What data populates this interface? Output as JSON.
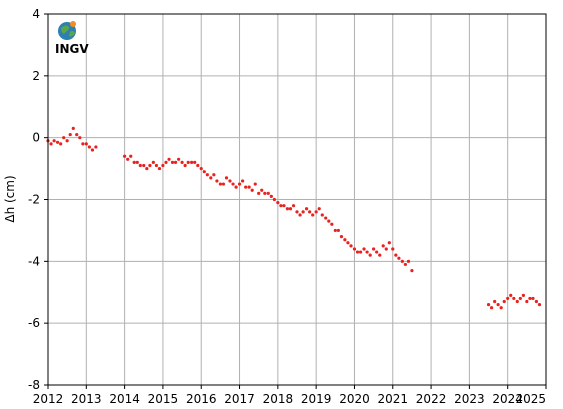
{
  "logo": {
    "text": "INGV"
  },
  "chart_data": {
    "type": "scatter",
    "ylabel": "Δh (cm)",
    "xlabel": "",
    "title": "",
    "xlim": [
      2012,
      2025
    ],
    "ylim": [
      -8,
      4
    ],
    "x_ticks": [
      2012,
      2013,
      2014,
      2015,
      2016,
      2017,
      2018,
      2019,
      2020,
      2021,
      2022,
      2023,
      2024,
      2025
    ],
    "y_ticks": [
      4,
      2,
      0,
      -2,
      -4,
      -6,
      -8
    ],
    "grid": true,
    "marker_color": "#e8231f",
    "series": [
      {
        "x": [
          2012.0,
          2012.08,
          2012.16,
          2012.25,
          2012.33,
          2012.41,
          2012.5,
          2012.58,
          2012.66,
          2012.75,
          2012.83,
          2012.91,
          2013.0,
          2013.08,
          2013.16,
          2013.25,
          2014.0,
          2014.08,
          2014.16,
          2014.25,
          2014.33,
          2014.41,
          2014.5,
          2014.58,
          2014.66,
          2014.75,
          2014.83,
          2014.91,
          2015.0,
          2015.08,
          2015.16,
          2015.25,
          2015.33,
          2015.41,
          2015.5,
          2015.58,
          2015.66,
          2015.75,
          2015.83,
          2015.91,
          2016.0,
          2016.08,
          2016.16,
          2016.25,
          2016.33,
          2016.41,
          2016.5,
          2016.58,
          2016.66,
          2016.75,
          2016.83,
          2016.91,
          2017.0,
          2017.08,
          2017.16,
          2017.25,
          2017.33,
          2017.41,
          2017.5,
          2017.58,
          2017.66,
          2017.75,
          2017.83,
          2017.91,
          2018.0,
          2018.08,
          2018.16,
          2018.25,
          2018.33,
          2018.41,
          2018.5,
          2018.58,
          2018.66,
          2018.75,
          2018.83,
          2018.91,
          2019.0,
          2019.08,
          2019.16,
          2019.25,
          2019.33,
          2019.41,
          2019.5,
          2019.58,
          2019.66,
          2019.75,
          2019.83,
          2019.91,
          2020.0,
          2020.08,
          2020.16,
          2020.25,
          2020.33,
          2020.41,
          2020.5,
          2020.58,
          2020.66,
          2020.75,
          2020.83,
          2020.91,
          2021.0,
          2021.08,
          2021.16,
          2021.25,
          2021.33,
          2021.41,
          2021.5,
          2023.5,
          2023.58,
          2023.66,
          2023.75,
          2023.83,
          2023.91,
          2024.0,
          2024.08,
          2024.16,
          2024.25,
          2024.33,
          2024.41,
          2024.5,
          2024.58,
          2024.66,
          2024.75,
          2024.83
        ],
        "y": [
          -0.1,
          -0.2,
          -0.1,
          -0.15,
          -0.2,
          0.0,
          -0.1,
          0.1,
          0.3,
          0.1,
          0.0,
          -0.2,
          -0.2,
          -0.3,
          -0.4,
          -0.3,
          -0.6,
          -0.7,
          -0.6,
          -0.8,
          -0.8,
          -0.9,
          -0.9,
          -1.0,
          -0.9,
          -0.8,
          -0.9,
          -1.0,
          -0.9,
          -0.8,
          -0.7,
          -0.8,
          -0.8,
          -0.7,
          -0.8,
          -0.9,
          -0.8,
          -0.8,
          -0.8,
          -0.9,
          -1.0,
          -1.1,
          -1.2,
          -1.3,
          -1.2,
          -1.4,
          -1.5,
          -1.5,
          -1.3,
          -1.4,
          -1.5,
          -1.6,
          -1.5,
          -1.4,
          -1.6,
          -1.6,
          -1.7,
          -1.5,
          -1.8,
          -1.7,
          -1.8,
          -1.8,
          -1.9,
          -2.0,
          -2.1,
          -2.2,
          -2.2,
          -2.3,
          -2.3,
          -2.2,
          -2.4,
          -2.5,
          -2.4,
          -2.3,
          -2.4,
          -2.5,
          -2.4,
          -2.3,
          -2.5,
          -2.6,
          -2.7,
          -2.8,
          -3.0,
          -3.0,
          -3.2,
          -3.3,
          -3.4,
          -3.5,
          -3.6,
          -3.7,
          -3.7,
          -3.6,
          -3.7,
          -3.8,
          -3.6,
          -3.7,
          -3.8,
          -3.5,
          -3.6,
          -3.4,
          -3.6,
          -3.8,
          -3.9,
          -4.0,
          -4.1,
          -4.0,
          -4.3,
          -5.4,
          -5.5,
          -5.3,
          -5.4,
          -5.5,
          -5.3,
          -5.2,
          -5.1,
          -5.2,
          -5.3,
          -5.2,
          -5.1,
          -5.3,
          -5.2,
          -5.2,
          -5.3,
          -5.4
        ]
      }
    ]
  }
}
